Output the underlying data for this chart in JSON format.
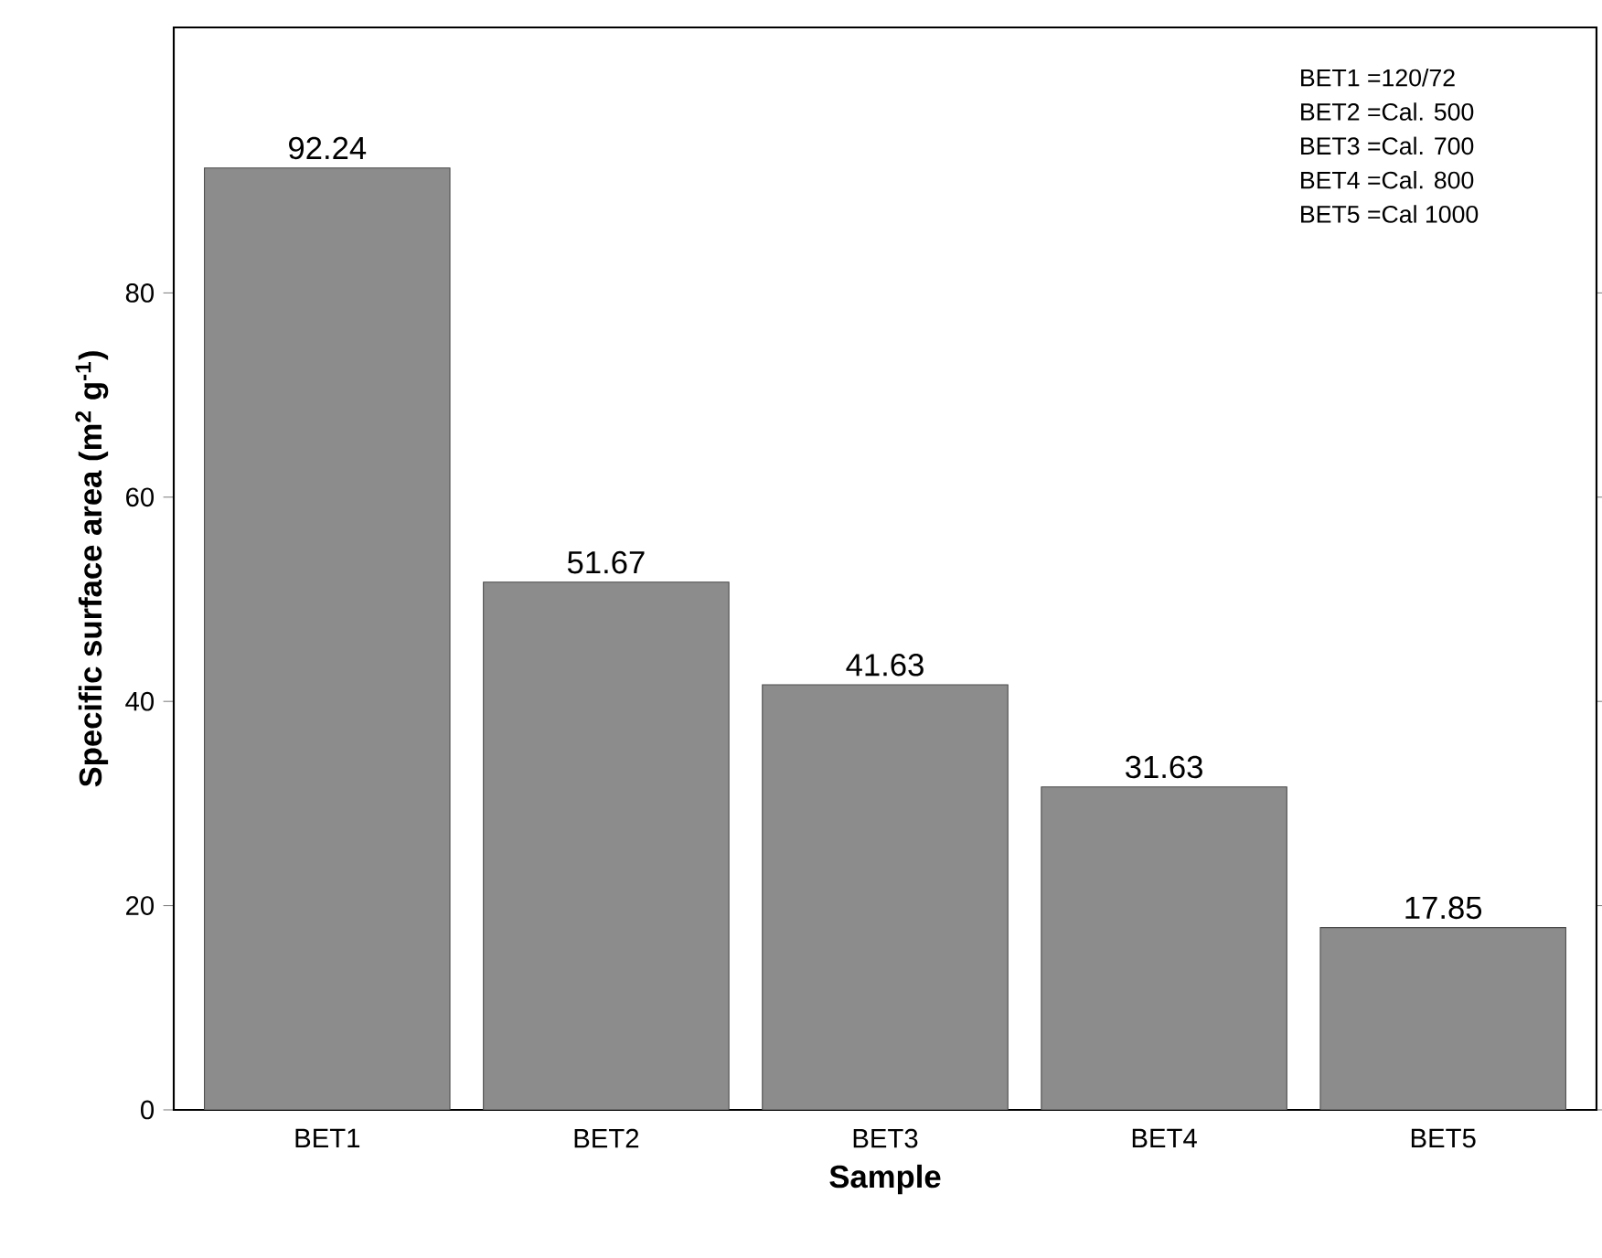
{
  "chart_data": {
    "type": "bar",
    "xlabel": "Sample",
    "ylabel": "Specific surface area (m$^{2}$ g$^{-1}$)",
    "categories": [
      "BET1",
      "BET2",
      "BET3",
      "BET4",
      "BET5"
    ],
    "values": [
      92.24,
      51.67,
      41.63,
      31.63,
      17.85
    ],
    "color": "#8c8c8c",
    "ylim": [
      0,
      106
    ],
    "yticks": [
      0,
      20,
      40,
      60,
      80
    ],
    "data_labels": true,
    "annotations": [
      "BET1 =120/72",
      "BET2 =Cal. 500",
      "BET3 =Cal. 700",
      "BET4 =Cal. 800",
      "BET5 =Cal 1000"
    ]
  }
}
